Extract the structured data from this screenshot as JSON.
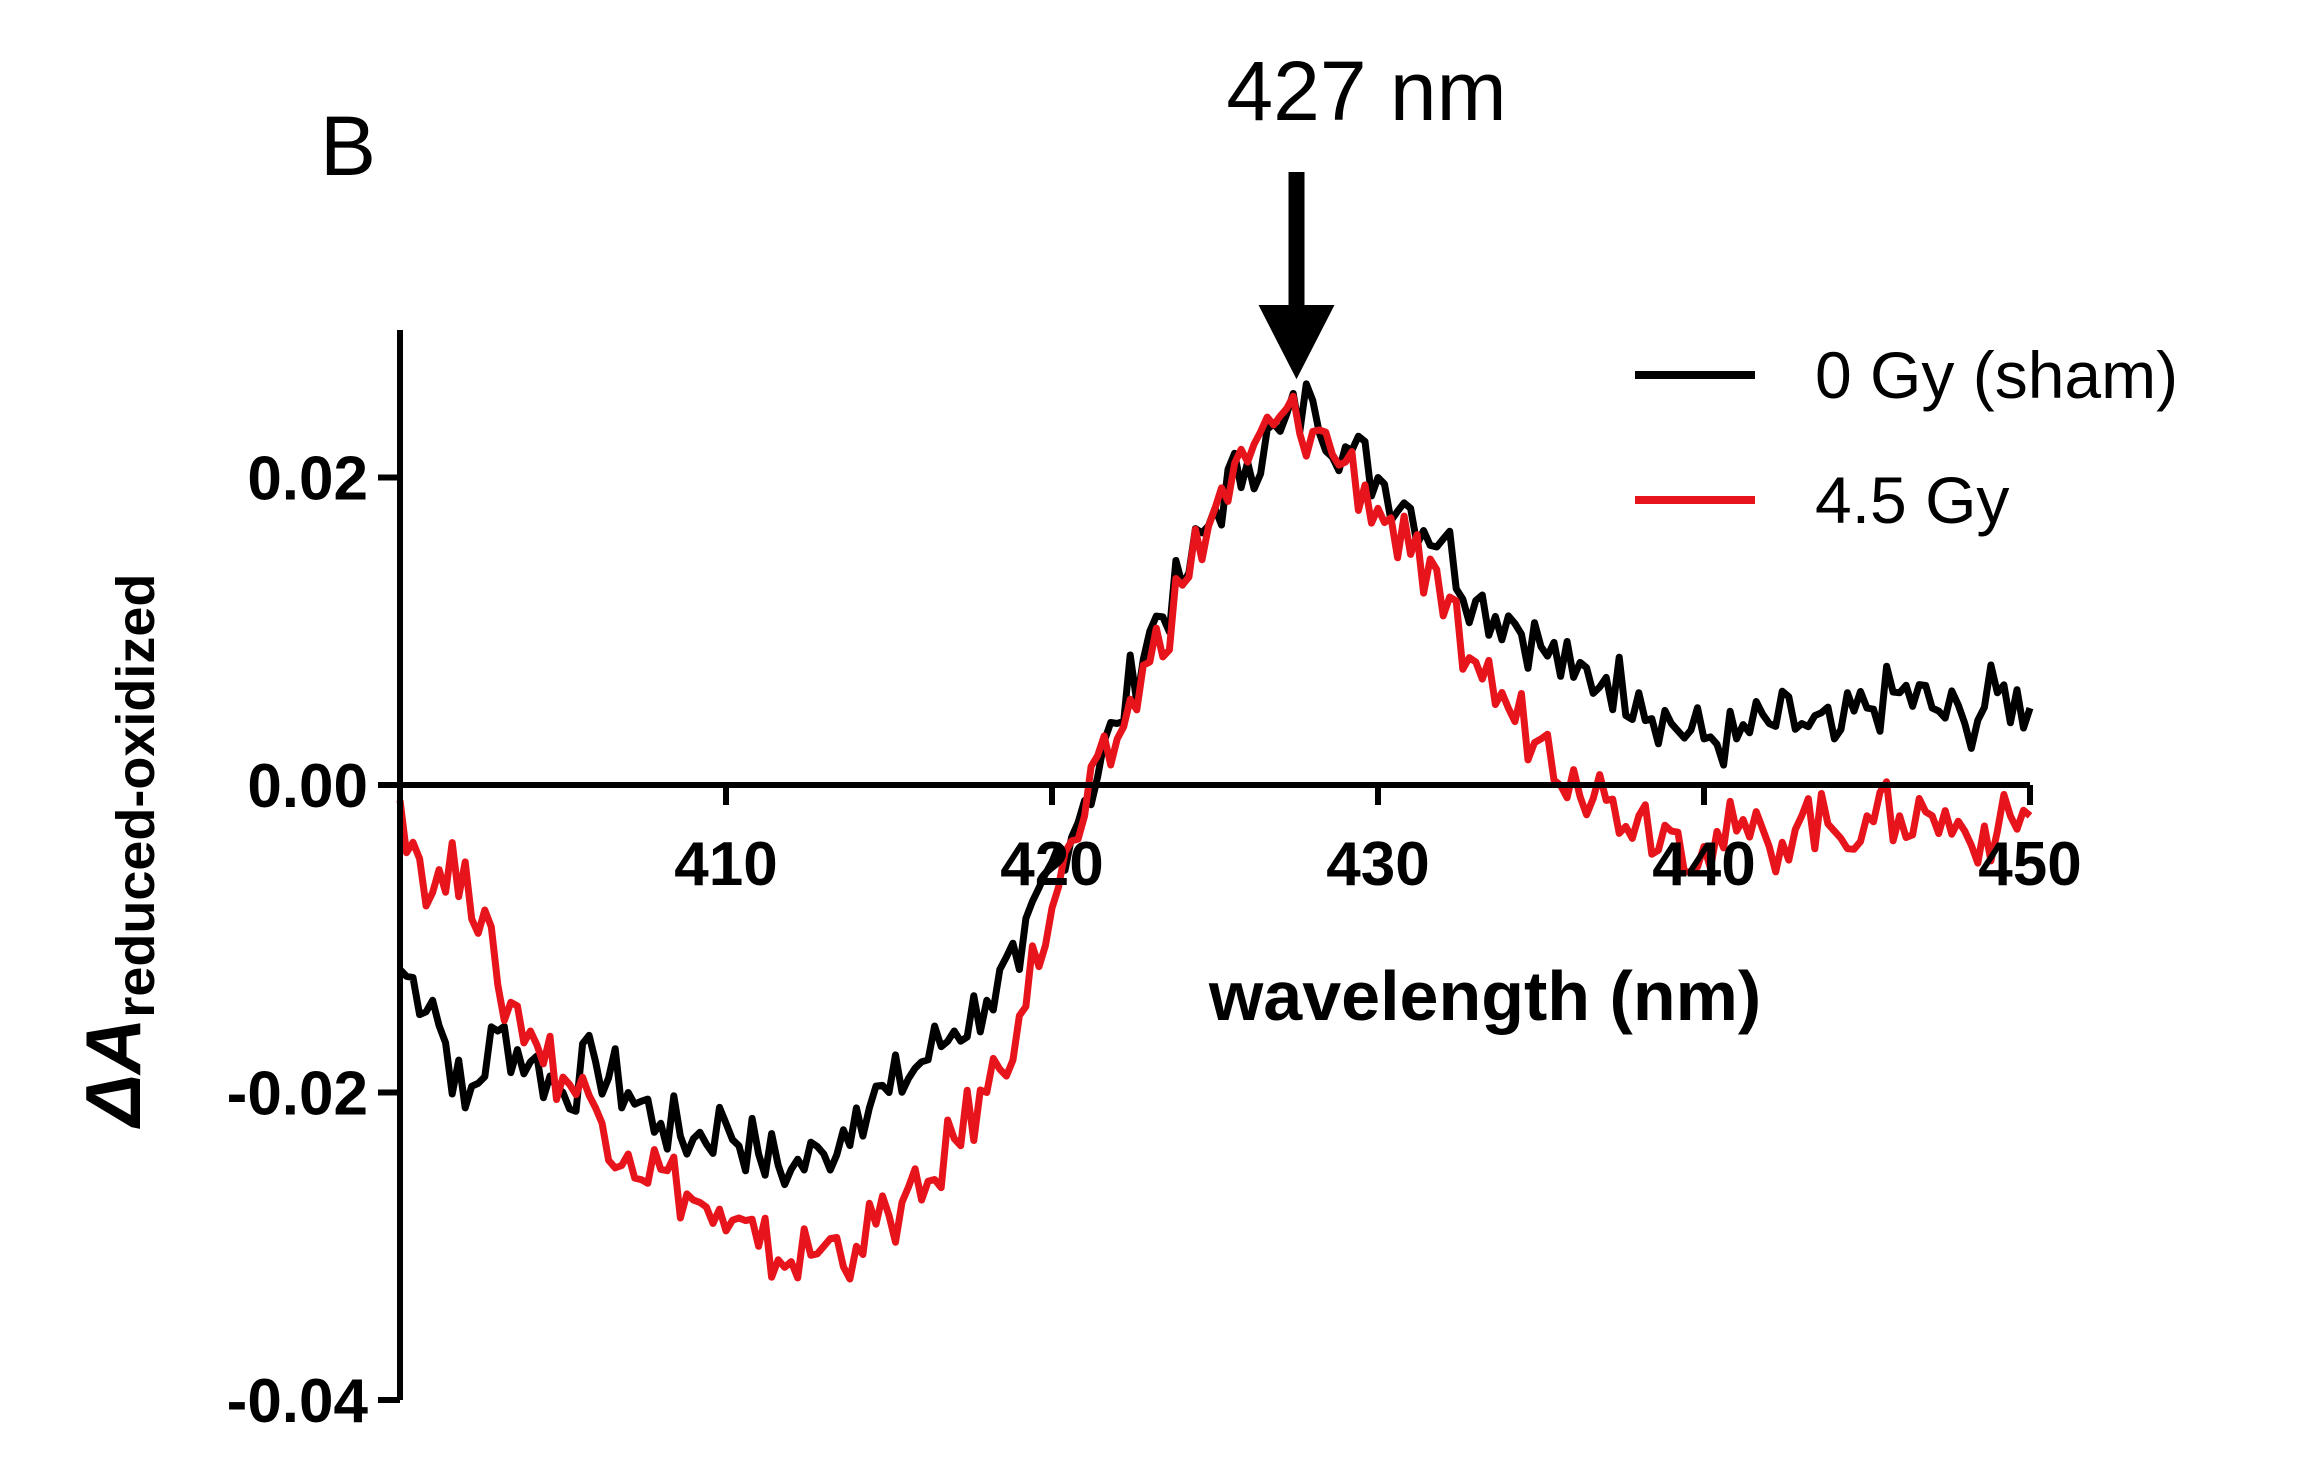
{
  "chart_data": {
    "type": "line",
    "panel_label": "B",
    "title": "",
    "xlabel": "wavelength (nm)",
    "ylabel": "ΔA",
    "ylabel_subscript": "reduced-oxidized",
    "xlim": [
      400,
      450
    ],
    "ylim": [
      -0.04,
      0.03
    ],
    "xticks": [
      410,
      420,
      430,
      440,
      450
    ],
    "xtick_labels": [
      "410",
      "420",
      "430",
      "440",
      "450"
    ],
    "yticks": [
      0.02,
      0.0,
      -0.02,
      -0.04
    ],
    "ytick_labels": [
      "0.02",
      "0.00",
      "-0.02",
      "-0.04"
    ],
    "grid": false,
    "legend_position": "top-right",
    "annotation": {
      "text": "427 nm",
      "x": 427.5,
      "y": 0.026
    },
    "series": [
      {
        "name": "0 Gy (sham)",
        "color": "#000000",
        "x": [
          400,
          401,
          402,
          403,
          404,
          405,
          406,
          407,
          408,
          409,
          410,
          411,
          412,
          413,
          414,
          415,
          416,
          417,
          418,
          419,
          420,
          421,
          422,
          423,
          424,
          425,
          426,
          427,
          428,
          429,
          430,
          431,
          432,
          433,
          434,
          435,
          436,
          437,
          438,
          439,
          440,
          441,
          442,
          443,
          444,
          445,
          446,
          447,
          448,
          449,
          450
        ],
        "values": [
          -0.012,
          -0.014,
          -0.021,
          -0.016,
          -0.018,
          -0.02,
          -0.018,
          -0.02,
          -0.022,
          -0.023,
          -0.022,
          -0.024,
          -0.025,
          -0.024,
          -0.021,
          -0.02,
          -0.018,
          -0.016,
          -0.014,
          -0.012,
          -0.005,
          -0.001,
          0.004,
          0.01,
          0.013,
          0.018,
          0.021,
          0.023,
          0.025,
          0.022,
          0.02,
          0.018,
          0.016,
          0.012,
          0.011,
          0.009,
          0.007,
          0.007,
          0.006,
          0.004,
          0.003,
          0.003,
          0.004,
          0.004,
          0.003,
          0.005,
          0.006,
          0.005,
          0.004,
          0.006,
          0.005
        ]
      },
      {
        "name": "4.5 Gy",
        "color": "#e8141b",
        "x": [
          400,
          401,
          402,
          403,
          404,
          405,
          406,
          407,
          408,
          409,
          410,
          411,
          412,
          413,
          414,
          415,
          416,
          417,
          418,
          419,
          420,
          421,
          422,
          423,
          424,
          425,
          426,
          427,
          428,
          429,
          430,
          431,
          432,
          433,
          434,
          435,
          436,
          437,
          438,
          439,
          440,
          441,
          442,
          443,
          444,
          445,
          446,
          447,
          448,
          449,
          450
        ],
        "values": [
          -0.001,
          -0.007,
          -0.005,
          -0.013,
          -0.016,
          -0.019,
          -0.021,
          -0.024,
          -0.025,
          -0.027,
          -0.029,
          -0.03,
          -0.031,
          -0.03,
          -0.03,
          -0.028,
          -0.027,
          -0.023,
          -0.02,
          -0.015,
          -0.008,
          -0.002,
          0.003,
          0.008,
          0.013,
          0.018,
          0.021,
          0.024,
          0.023,
          0.021,
          0.018,
          0.015,
          0.011,
          0.008,
          0.005,
          0.003,
          0.001,
          -0.001,
          -0.002,
          -0.003,
          -0.004,
          -0.003,
          -0.004,
          -0.002,
          -0.003,
          -0.002,
          -0.002,
          -0.002,
          -0.003,
          -0.003,
          -0.002
        ]
      }
    ]
  }
}
